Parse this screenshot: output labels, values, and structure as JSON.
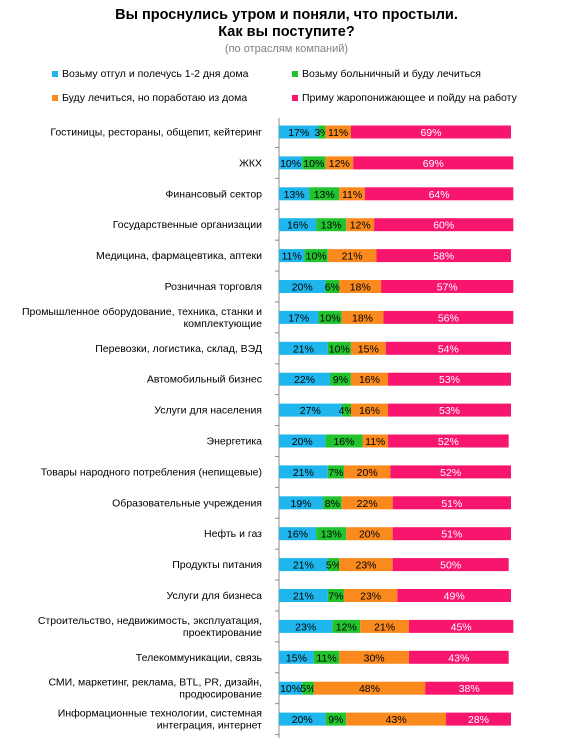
{
  "title_line1": "Вы проснулись утром и поняли, что простыли.",
  "title_line2": "Как вы поступите?",
  "subtitle": "(по отраслям компаний)",
  "chart_data": {
    "type": "bar",
    "orientation": "horizontal",
    "stacked": true,
    "percent": true,
    "legend_position": "top",
    "series": [
      {
        "name": "Возьму отгул и полечусь 1-2 дня дома",
        "color": "#1fb6ee",
        "values": [
          17,
          10,
          13,
          16,
          11,
          20,
          17,
          21,
          22,
          27,
          20,
          21,
          19,
          16,
          21,
          21,
          23,
          15,
          10,
          20
        ]
      },
      {
        "name": "Возьму больничный и буду лечиться",
        "color": "#22c32f",
        "values": [
          3,
          10,
          13,
          13,
          10,
          6,
          10,
          10,
          9,
          4,
          16,
          7,
          8,
          13,
          5,
          7,
          12,
          11,
          5,
          9
        ]
      },
      {
        "name": "Буду лечиться, но поработаю из дома",
        "color": "#fb8a1e",
        "values": [
          11,
          12,
          11,
          12,
          21,
          18,
          18,
          15,
          16,
          16,
          11,
          20,
          22,
          20,
          23,
          23,
          21,
          30,
          48,
          43
        ]
      },
      {
        "name": "Приму жаропонижающее и пойду на работу",
        "color": "#f8156e",
        "values": [
          69,
          69,
          64,
          60,
          58,
          57,
          56,
          54,
          53,
          53,
          52,
          52,
          51,
          51,
          50,
          49,
          45,
          43,
          38,
          28
        ]
      }
    ],
    "categories": [
      [
        "Гостиницы, рестораны, общепит, кейтеринг"
      ],
      [
        "ЖКХ"
      ],
      [
        "Финансовый сектор"
      ],
      [
        "Государственные организации"
      ],
      [
        "Медицина, фармацевтика, аптеки"
      ],
      [
        "Розничная торговля"
      ],
      [
        "Промышленное оборудование, техника, станки и",
        "комплектующие"
      ],
      [
        "Перевозки, логистика, склад, ВЭД"
      ],
      [
        "Автомобильный бизнес"
      ],
      [
        "Услуги для населения"
      ],
      [
        "Энергетика"
      ],
      [
        "Товары народного потребления (непищевые)"
      ],
      [
        "Образовательные учреждения"
      ],
      [
        "Нефть и газ"
      ],
      [
        "Продукты питания"
      ],
      [
        "Услуги для бизнеса"
      ],
      [
        "Строительство, недвижимость, эксплуатация,",
        "проектирование"
      ],
      [
        "Телекоммуникации, связь"
      ],
      [
        "СМИ, маркетинг, реклама, BTL, PR, дизайн,",
        "продюсирование"
      ],
      [
        "Информационные технологии, системная",
        "интеграция, интернет"
      ]
    ]
  }
}
